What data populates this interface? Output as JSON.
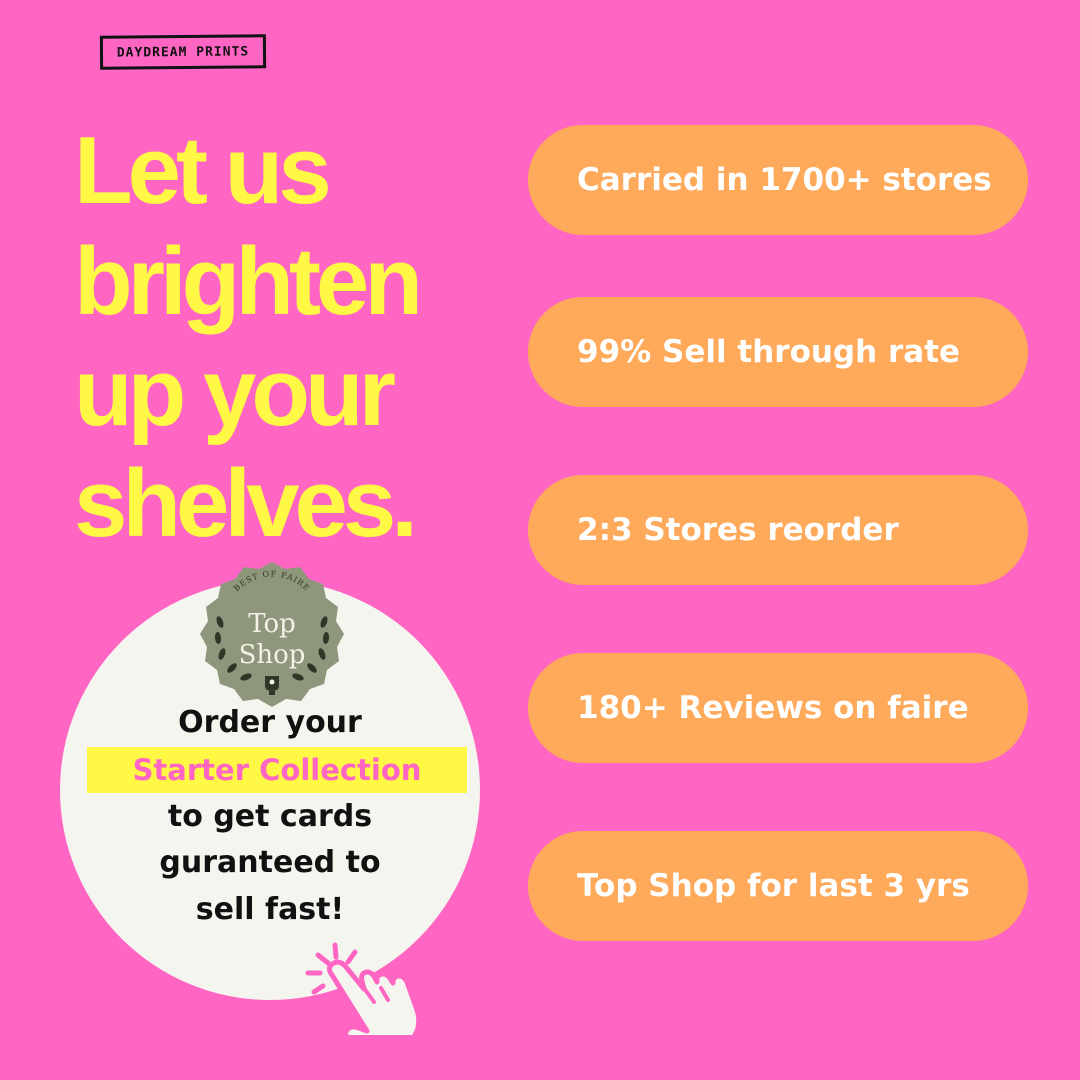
{
  "brand": {
    "logo_text": "DAYDREAM PRINTS"
  },
  "headline": {
    "lines": [
      "Let us",
      "brighten",
      "up your",
      "shelves."
    ]
  },
  "stats": [
    {
      "label": "Carried in 1700+ stores"
    },
    {
      "label": "99% Sell through rate"
    },
    {
      "label": "2:3 Stores reorder"
    },
    {
      "label": "180+ Reviews on faire"
    },
    {
      "label": "Top Shop for last 3 yrs"
    }
  ],
  "badge": {
    "arc_text": "BEST OF FAIRE",
    "title_line1": "Top",
    "title_line2": "Shop",
    "icon": "laurel-trophy-icon"
  },
  "cta": {
    "line1": "Order your",
    "highlight": "Starter Collection",
    "line2": "to get cards",
    "line3": "guranteed to",
    "line4": "sell fast!",
    "icon": "hand-click-icon"
  },
  "colors": {
    "background": "#FF66C4",
    "headline": "#FFF845",
    "pill": "#FFA95A",
    "circle": "#F5F5F0",
    "badge": "#8E977C"
  }
}
